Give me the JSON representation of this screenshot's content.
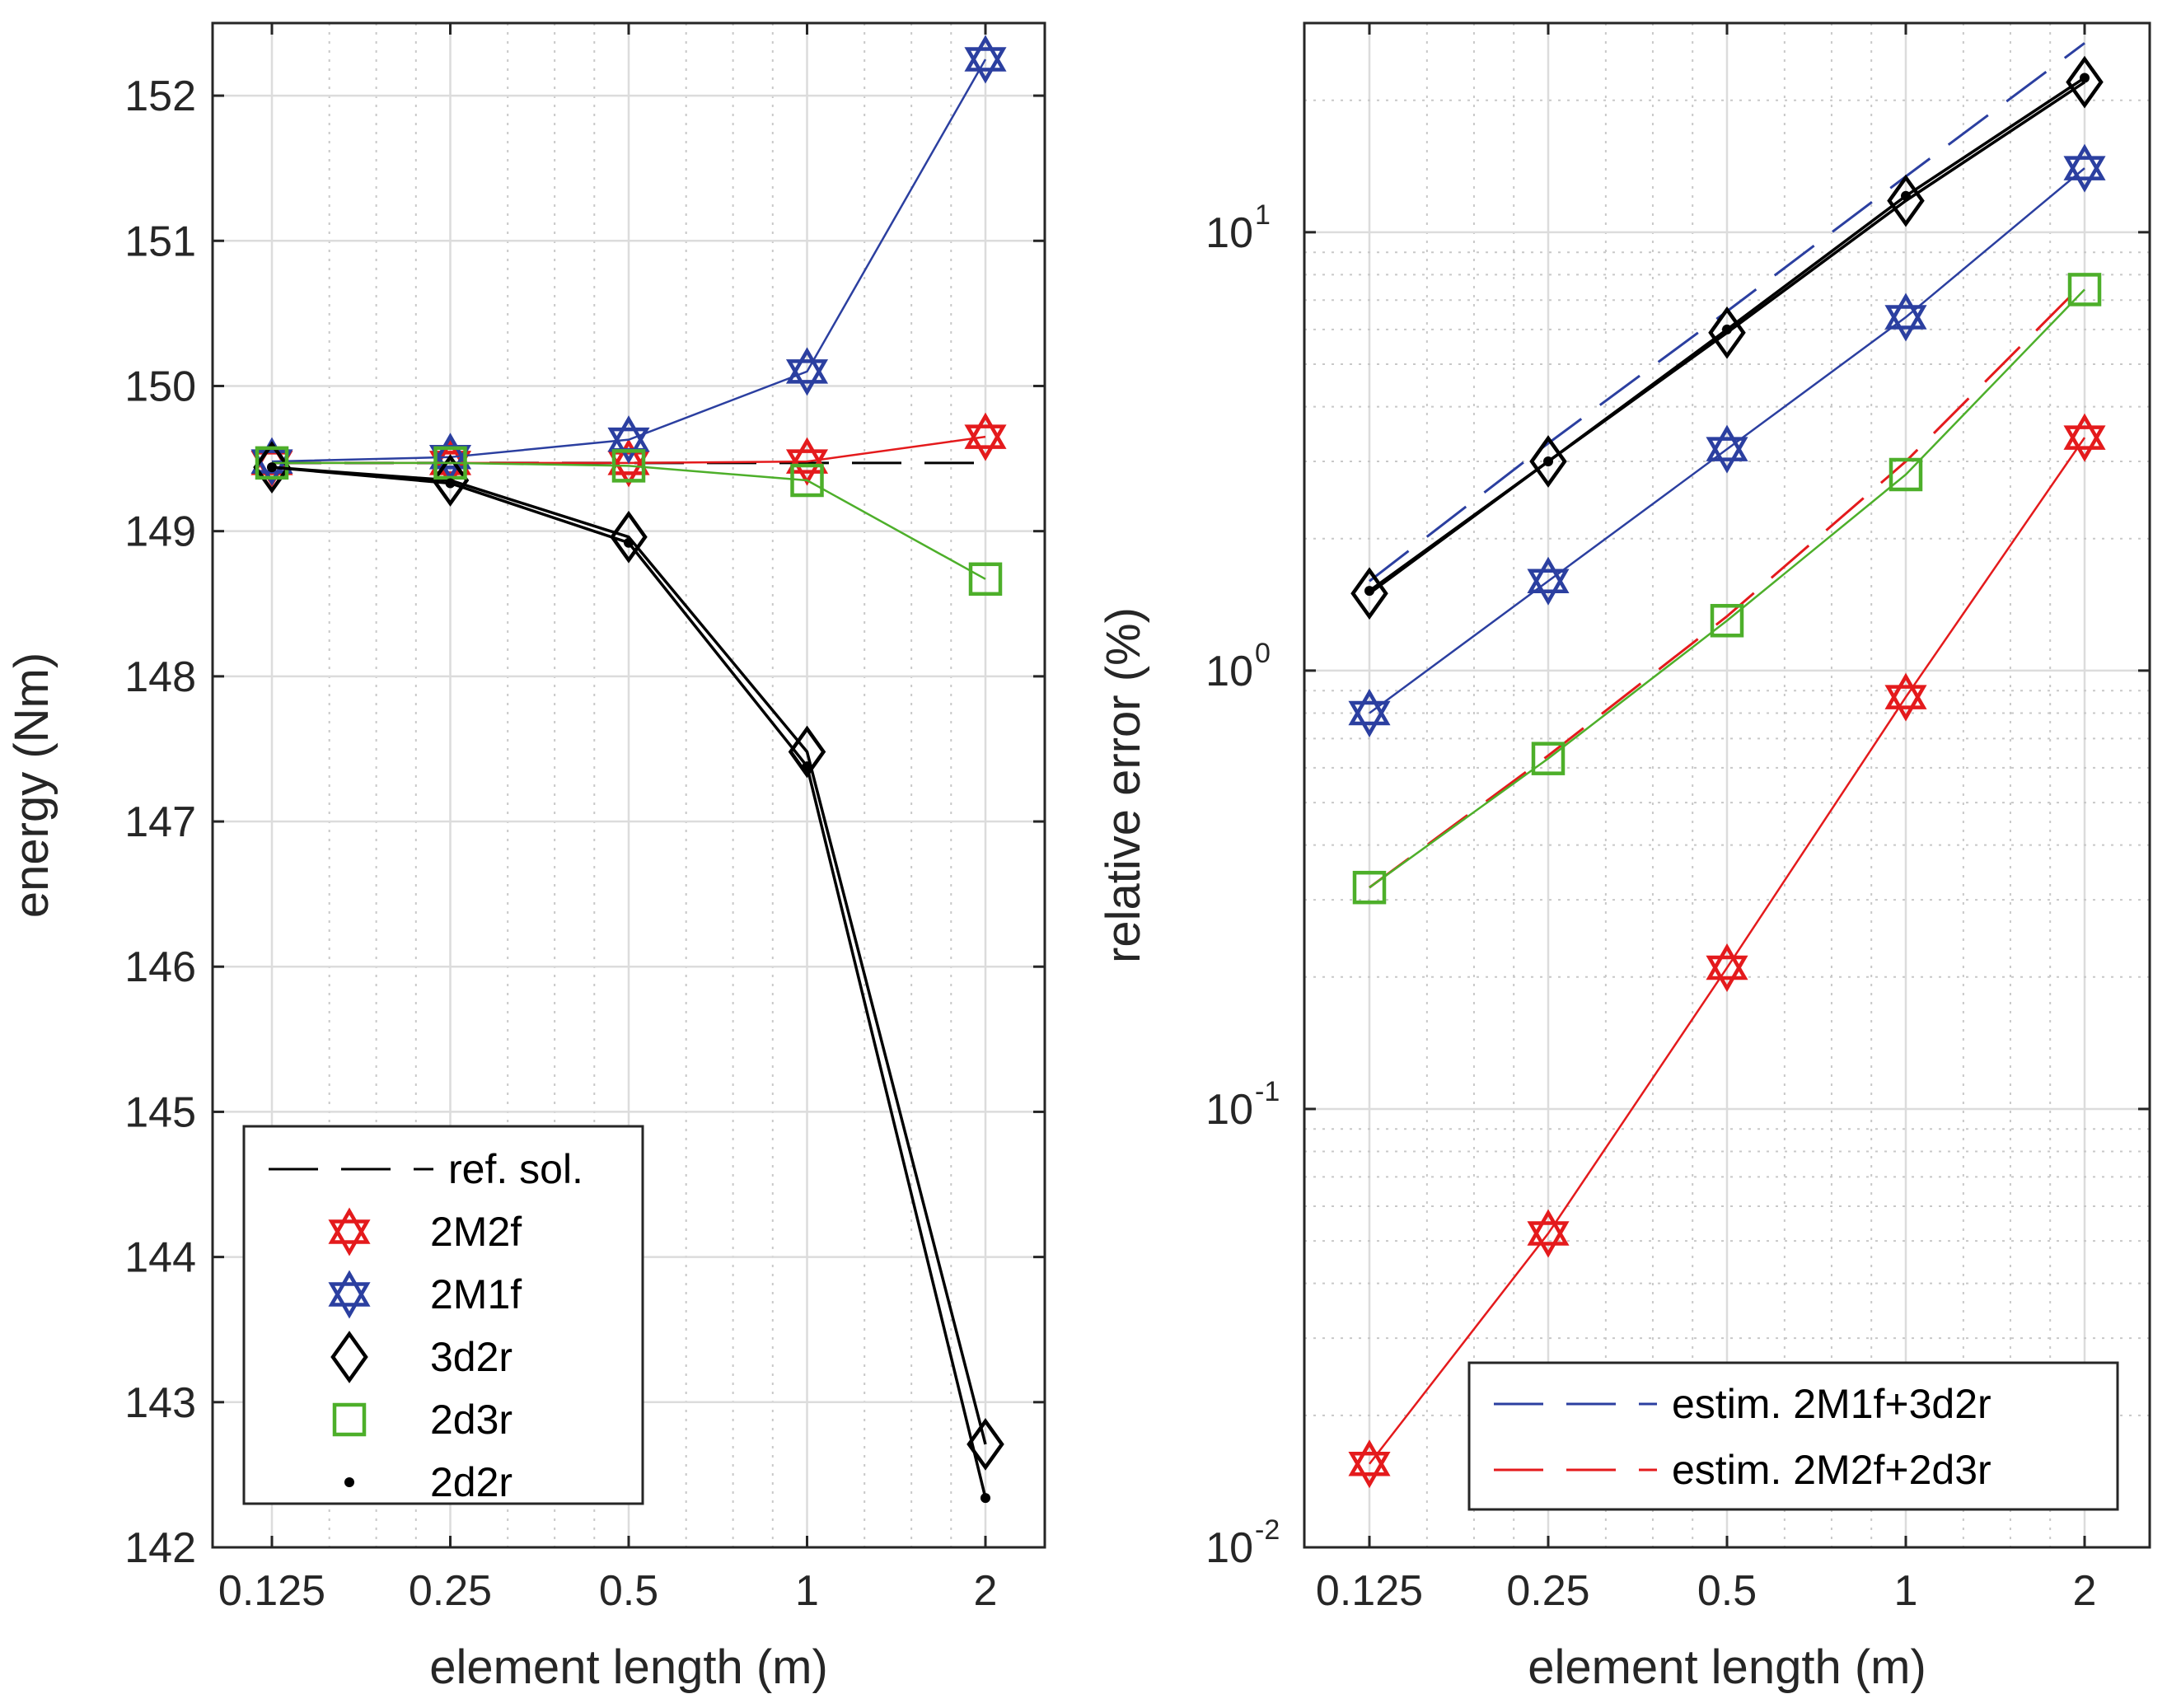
{
  "colors": {
    "red": "#e41a1c",
    "blue": "#2b3fa0",
    "black": "#000000",
    "green": "#4daf2a"
  },
  "chart_data": [
    {
      "type": "line",
      "xscale": "log2",
      "x": [
        0.125,
        0.25,
        0.5,
        1,
        2
      ],
      "xticks": [
        "0.125",
        "0.25",
        "0.5",
        "1",
        "2"
      ],
      "xlabel": "element length (m)",
      "ylabel": "energy (Nm)",
      "ylim": [
        142,
        152.5
      ],
      "yticks": [
        142,
        143,
        144,
        145,
        146,
        147,
        148,
        149,
        150,
        151,
        152
      ],
      "grid": true,
      "legend_location": "bottom-left",
      "series": [
        {
          "name": "ref. sol.",
          "style": "dashed",
          "color": "black",
          "marker": "none",
          "values": [
            149.47,
            149.47,
            149.47,
            149.47,
            149.47
          ]
        },
        {
          "name": "2M2f",
          "style": "solid",
          "color": "red",
          "marker": "hexagram",
          "values": [
            149.47,
            149.47,
            149.47,
            149.48,
            149.65
          ]
        },
        {
          "name": "2M1f",
          "style": "solid",
          "color": "blue",
          "marker": "hexagram",
          "values": [
            149.48,
            149.51,
            149.63,
            150.1,
            152.25
          ]
        },
        {
          "name": "3d2r",
          "style": "solid",
          "color": "black",
          "marker": "diamond",
          "values": [
            149.44,
            149.35,
            148.96,
            147.48,
            142.71
          ]
        },
        {
          "name": "2d3r",
          "style": "solid",
          "color": "green",
          "marker": "square",
          "values": [
            149.47,
            149.47,
            149.45,
            149.35,
            148.67
          ]
        },
        {
          "name": "2d2r",
          "style": "solid",
          "color": "black",
          "marker": "dot",
          "values": [
            149.44,
            149.33,
            148.92,
            147.38,
            142.34
          ]
        }
      ]
    },
    {
      "type": "line",
      "xscale": "log2",
      "yscale": "log10",
      "x": [
        0.125,
        0.25,
        0.5,
        1,
        2
      ],
      "xticks": [
        "0.125",
        "0.25",
        "0.5",
        "1",
        "2"
      ],
      "xlabel": "element length (m)",
      "ylabel": "relative error (%)",
      "ylim": [
        0.01,
        30
      ],
      "yticks": [
        {
          "base": "10",
          "exp": "-2",
          "value": 0.01
        },
        {
          "base": "10",
          "exp": "-1",
          "value": 0.1
        },
        {
          "base": "10",
          "exp": "0",
          "value": 1
        },
        {
          "base": "10",
          "exp": "1",
          "value": 10
        }
      ],
      "grid": true,
      "legend_location": "bottom-right",
      "series": [
        {
          "name": "estim. 2M1f+3d2r",
          "style": "dashed",
          "color": "blue",
          "marker": "none",
          "in_legend": true,
          "values": [
            1.6,
            3.3,
            6.6,
            13.4,
            27.0
          ]
        },
        {
          "name": "estim. 2M2f+2d3r",
          "style": "dashed",
          "color": "red",
          "marker": "none",
          "in_legend": true,
          "values": [
            0.32,
            0.64,
            1.33,
            3.0,
            7.7
          ]
        },
        {
          "name": "2M2f",
          "style": "solid",
          "color": "red",
          "marker": "hexagram",
          "in_legend": false,
          "values": [
            0.0155,
            0.052,
            0.21,
            0.87,
            3.4
          ]
        },
        {
          "name": "2M1f",
          "style": "solid",
          "color": "blue",
          "marker": "hexagram",
          "in_legend": false,
          "values": [
            0.8,
            1.6,
            3.2,
            6.4,
            14.0
          ]
        },
        {
          "name": "3d2r",
          "style": "solid",
          "color": "black",
          "marker": "diamond",
          "in_legend": false,
          "values": [
            1.5,
            3.0,
            5.9,
            11.8,
            22.0
          ]
        },
        {
          "name": "2d3r",
          "style": "solid",
          "color": "green",
          "marker": "square",
          "in_legend": false,
          "values": [
            0.32,
            0.63,
            1.3,
            2.8,
            7.4
          ]
        },
        {
          "name": "2d2r",
          "style": "solid",
          "color": "black",
          "marker": "dot",
          "in_legend": false,
          "values": [
            1.52,
            3.0,
            6.0,
            12.1,
            22.5
          ]
        }
      ]
    }
  ]
}
